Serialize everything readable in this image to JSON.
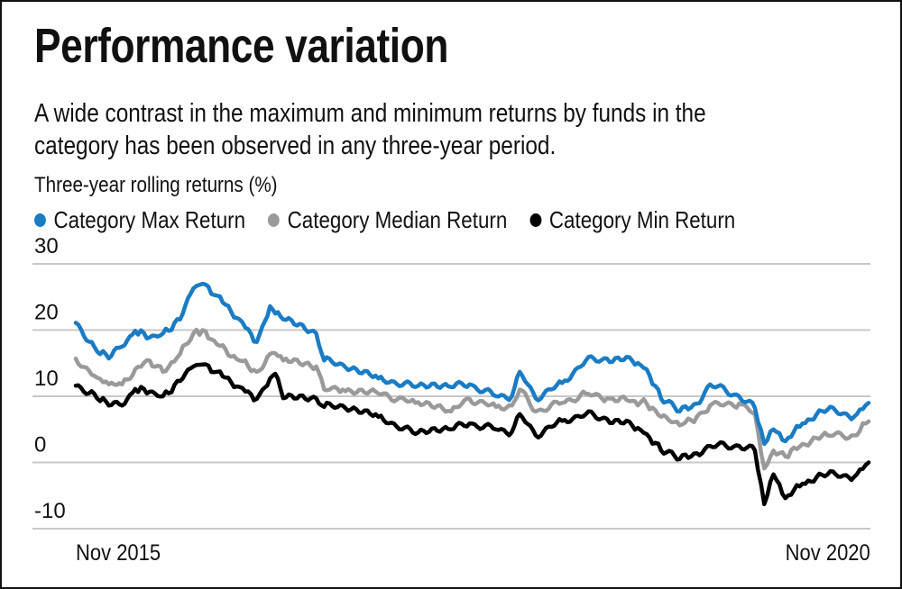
{
  "title": "Performance variation",
  "subtitle_lines": [
    "A wide contrast in the maximum and minimum returns by funds in the",
    "category has been observed in any three-year period."
  ],
  "chart_data": {
    "type": "line",
    "title": "Performance variation",
    "ylabel": "Three-year rolling returns (%)",
    "xlabel": "",
    "ylim": [
      -10,
      30
    ],
    "yticks": [
      30,
      20,
      10,
      0,
      -10
    ],
    "xlim": [
      0,
      60
    ],
    "x_unit": "months since Nov 2015",
    "xtick_labels": [
      {
        "x": 0,
        "label": "Nov 2015"
      },
      {
        "x": 60,
        "label": "Nov 2020"
      }
    ],
    "grid": true,
    "legend_position": "top",
    "x": [
      0,
      1.4,
      2.5,
      3.5,
      4.5,
      5.6,
      6.6,
      7.9,
      8.9,
      9.6,
      10.7,
      12.4,
      13.7,
      14.7,
      15.1,
      15.7,
      18.2,
      18.8,
      20.2,
      22.9,
      25.7,
      28.4,
      29.8,
      31.8,
      33.0,
      33.6,
      34.8,
      36.8,
      38.6,
      40.2,
      42.1,
      43.2,
      44.3,
      45.7,
      47.0,
      48.0,
      50.2,
      51.4,
      52.1,
      52.8,
      53.7,
      55.0,
      56.9,
      58.9,
      60.0
    ],
    "series": [
      {
        "name": "Category Max Return",
        "color": "#1a7cc4",
        "values": [
          21.1,
          17.5,
          15.7,
          17.5,
          19.9,
          18.9,
          19.5,
          21.6,
          26.3,
          27.0,
          25.2,
          21.6,
          18.2,
          23.6,
          22.5,
          21.6,
          19.5,
          15.4,
          14.8,
          12.7,
          11.4,
          11.4,
          11.8,
          10.0,
          10.0,
          13.7,
          9.7,
          12.0,
          15.4,
          15.7,
          15.4,
          14.1,
          9.6,
          7.7,
          8.9,
          11.8,
          10.0,
          8.2,
          2.8,
          5.0,
          3.2,
          5.9,
          8.0,
          6.9,
          9.0
        ]
      },
      {
        "name": "Category Median Return",
        "color": "#9a9a9c",
        "values": [
          15.7,
          13.1,
          11.8,
          11.8,
          14.1,
          15.4,
          13.7,
          16.4,
          19.5,
          20.0,
          17.8,
          15.4,
          13.7,
          16.4,
          16.5,
          15.4,
          14.5,
          11.0,
          11.0,
          10.4,
          9.0,
          7.7,
          9.6,
          8.4,
          8.6,
          11.0,
          7.7,
          9.0,
          10.4,
          9.7,
          9.3,
          8.9,
          6.9,
          5.6,
          6.9,
          8.6,
          8.9,
          7.3,
          -0.9,
          1.8,
          0.9,
          2.8,
          4.1,
          4.1,
          6.2
        ]
      },
      {
        "name": "Category Min Return",
        "color": "#000000",
        "values": [
          11.6,
          10.4,
          8.6,
          8.6,
          11.1,
          10.7,
          10.0,
          12.3,
          14.5,
          14.8,
          13.7,
          11.4,
          9.6,
          12.7,
          13.4,
          9.7,
          9.7,
          8.4,
          8.6,
          6.9,
          4.3,
          5.0,
          5.9,
          5.0,
          4.6,
          7.3,
          4.1,
          6.3,
          7.3,
          6.6,
          5.6,
          4.3,
          1.8,
          0.5,
          1.4,
          2.5,
          2.5,
          1.8,
          -6.3,
          -1.8,
          -5.4,
          -3.2,
          -1.8,
          -2.2,
          0.0
        ]
      }
    ]
  }
}
